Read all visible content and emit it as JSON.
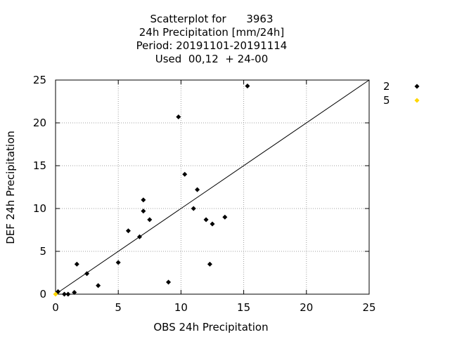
{
  "chart_data": {
    "type": "scatter",
    "title_lines": [
      "Scatterplot for      3963",
      "24h Precipitation [mm/24h]",
      "Period: 20191101-20191114",
      "Used  00,12  + 24-00"
    ],
    "xlabel": "OBS 24h Precipitation",
    "ylabel": "DEF 24h Precipitation",
    "xlim": [
      0,
      25
    ],
    "ylim": [
      0,
      25
    ],
    "xticks": [
      0,
      5,
      10,
      15,
      20,
      25
    ],
    "yticks": [
      0,
      5,
      10,
      15,
      20,
      25
    ],
    "grid": true,
    "legend_position": "right",
    "diagonal_line": true,
    "series": [
      {
        "name": "2",
        "color": "#000000",
        "marker": "diamond",
        "points": [
          [
            0.2,
            0.3
          ],
          [
            0.7,
            0.0
          ],
          [
            1.0,
            0.0
          ],
          [
            1.5,
            0.2
          ],
          [
            1.7,
            3.5
          ],
          [
            2.5,
            2.4
          ],
          [
            3.4,
            1.0
          ],
          [
            5.0,
            3.7
          ],
          [
            5.8,
            7.4
          ],
          [
            6.7,
            6.7
          ],
          [
            7.0,
            9.7
          ],
          [
            7.0,
            11.0
          ],
          [
            7.5,
            8.7
          ],
          [
            9.0,
            1.4
          ],
          [
            9.8,
            20.7
          ],
          [
            10.3,
            14.0
          ],
          [
            11.0,
            10.0
          ],
          [
            11.3,
            12.2
          ],
          [
            12.0,
            8.7
          ],
          [
            12.3,
            3.5
          ],
          [
            12.5,
            8.2
          ],
          [
            13.5,
            9.0
          ],
          [
            15.3,
            24.3
          ]
        ]
      },
      {
        "name": "5",
        "color": "#ffd700",
        "marker": "diamond",
        "points": [
          [
            0.0,
            0.0
          ]
        ]
      }
    ]
  }
}
